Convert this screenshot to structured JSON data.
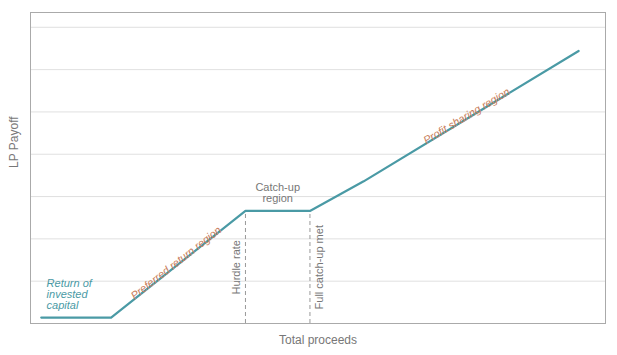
{
  "chart_data": {
    "type": "line",
    "xlabel": "Total proceeds",
    "ylabel": "LP Payoff",
    "x": [
      0.0,
      0.13,
      0.38,
      0.5,
      0.6,
      1.0
    ],
    "values": [
      0.02,
      0.02,
      0.38,
      0.38,
      0.48,
      0.92
    ],
    "color": "#4a9aa5",
    "xlim": [
      -0.02,
      1.05
    ],
    "ylim": [
      0.0,
      1.05
    ],
    "yticks": [
      0.0,
      0.14285714285714285,
      0.2857142857142857,
      0.42857142857142855,
      0.5714285714285714,
      0.7142857142857143,
      0.8571428571428571,
      1.0
    ],
    "grid": true,
    "tick_labels": false,
    "reference_lines": [
      {
        "x": 0.38,
        "y": 0.38
      },
      {
        "x": 0.5,
        "y": 0.38
      }
    ],
    "annotations": [
      {
        "text": "Return of\ninvested\ncapital",
        "x": 0.01,
        "y": 0.05,
        "color": "#4a9aa5"
      },
      {
        "text": "Preferred return region",
        "x": 0.255,
        "y": 0.195,
        "color": "#c87d5a"
      },
      {
        "text": "Catch-up\nregion",
        "x": 0.44,
        "y": 0.41,
        "color": "#777777"
      },
      {
        "text": "Profit sharing region",
        "x": 0.795,
        "y": 0.69,
        "color": "#c87d5a"
      },
      {
        "text": "Hurdle rate",
        "x": 0.38,
        "y": 0.19,
        "color": "#777777"
      },
      {
        "text": "Full catch-up met",
        "x": 0.5,
        "y": 0.19,
        "color": "#777777"
      }
    ]
  }
}
